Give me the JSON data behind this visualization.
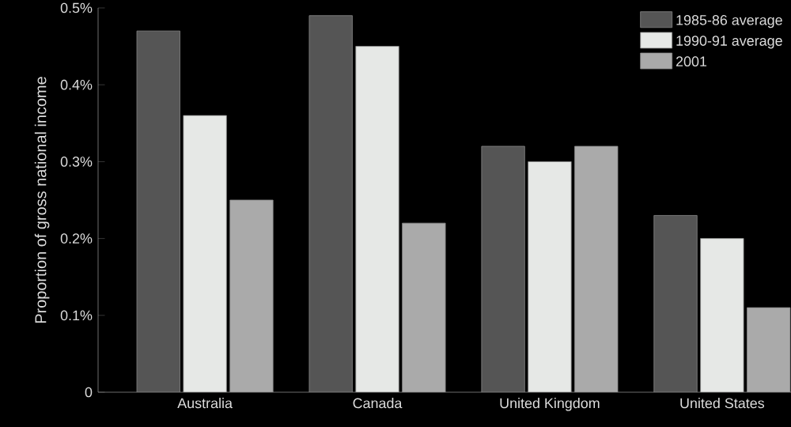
{
  "chart_data": {
    "type": "bar",
    "ylabel": "Proportion of gross national income",
    "categories": [
      "Australia",
      "Canada",
      "United Kingdom",
      "United States"
    ],
    "series": [
      {
        "name": "1985-86 average",
        "color": "#555555",
        "values": [
          0.47,
          0.49,
          0.32,
          0.23
        ]
      },
      {
        "name": "1990-91 average",
        "color": "#e6e8e6",
        "values": [
          0.36,
          0.45,
          0.3,
          0.2
        ]
      },
      {
        "name": "2001",
        "color": "#aaaaaa",
        "values": [
          0.25,
          0.22,
          0.32,
          0.11
        ]
      }
    ],
    "ylim": [
      0,
      0.5
    ],
    "yticks": [
      {
        "value": 0,
        "label": "0"
      },
      {
        "value": 0.1,
        "label": "0.1%"
      },
      {
        "value": 0.2,
        "label": "0.2%"
      },
      {
        "value": 0.3,
        "label": "0.3%"
      },
      {
        "value": 0.4,
        "label": "0.4%"
      },
      {
        "value": 0.5,
        "label": "0.5%"
      }
    ],
    "grid": false,
    "legend": "top right"
  }
}
